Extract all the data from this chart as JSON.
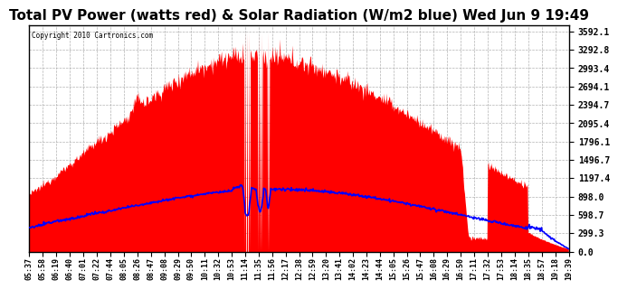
{
  "title": "Total PV Power (watts red) & Solar Radiation (W/m2 blue) Wed Jun 9 19:49",
  "copyright": "Copyright 2010 Cartronics.com",
  "title_fontsize": 11,
  "background_color": "#ffffff",
  "plot_bg_color": "#ffffff",
  "yticks": [
    0.0,
    299.3,
    598.7,
    898.0,
    1197.4,
    1496.7,
    1796.1,
    2095.4,
    2394.7,
    2694.1,
    2993.4,
    3292.8,
    3592.1
  ],
  "ylim": [
    0,
    3700
  ],
  "grid_color": "#aaaaaa",
  "pv_color": "#ff0000",
  "solar_color": "#0000ff"
}
